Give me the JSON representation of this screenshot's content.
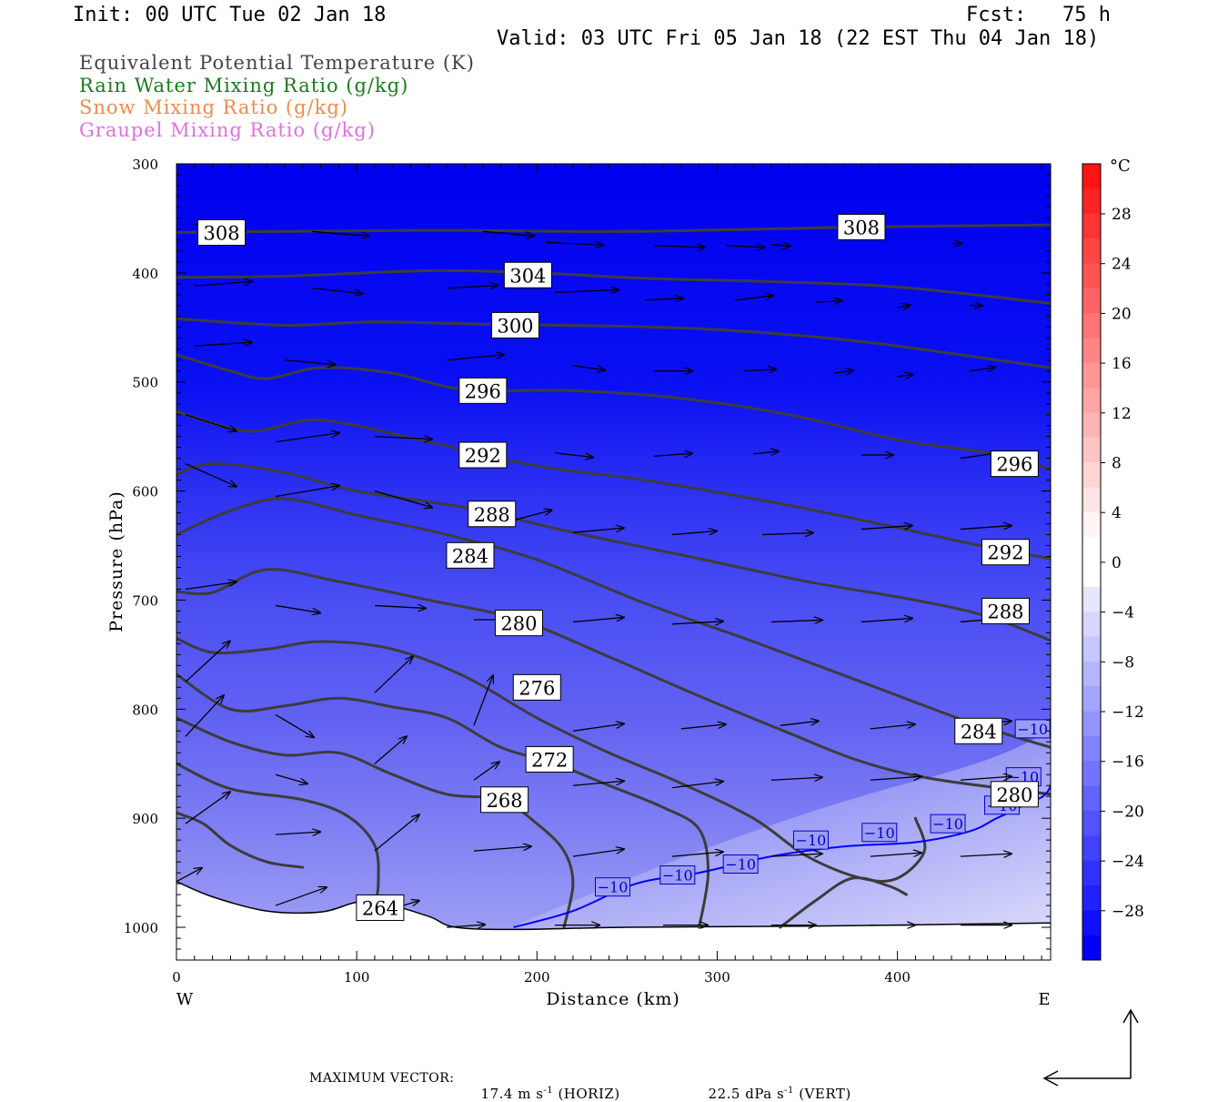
{
  "header": {
    "init": "Init: 00 UTC Tue 02 Jan 18",
    "fcst": "Fcst:   75 h",
    "valid": "Valid: 03 UTC Fri 05 Jan 18 (22 EST Thu 04 Jan 18)"
  },
  "fields": [
    {
      "label": "Equivalent Potential Temperature (K)",
      "color": "#444444"
    },
    {
      "label": "Rain Water Mixing Ratio (g/kg)",
      "color": "#1a7a1a"
    },
    {
      "label": "Snow Mixing Ratio (g/kg)",
      "color": "#f08a4b"
    },
    {
      "label": "Graupel Mixing Ratio (g/kg)",
      "color": "#e070e0"
    }
  ],
  "chart_data": {
    "type": "cross-section",
    "xlabel": "Distance (km)",
    "ylabel": "Pressure (hPa)",
    "xlim": [
      0,
      485
    ],
    "ylim": [
      1030,
      300
    ],
    "x_ticks": [
      0,
      100,
      200,
      300,
      400
    ],
    "y_ticks": [
      300,
      400,
      500,
      600,
      700,
      800,
      900,
      1000
    ],
    "x_end_labels": {
      "left": "W",
      "right": "E"
    },
    "theta_e_isolines": [
      {
        "label": "308",
        "points": [
          [
            0,
            363
          ],
          [
            60,
            362
          ],
          [
            150,
            361
          ],
          [
            250,
            362
          ],
          [
            380,
            358
          ],
          [
            485,
            356
          ]
        ]
      },
      {
        "label": "304",
        "points": [
          [
            0,
            404
          ],
          [
            60,
            403
          ],
          [
            140,
            398
          ],
          [
            200,
            400
          ],
          [
            260,
            405
          ],
          [
            330,
            408
          ],
          [
            400,
            413
          ],
          [
            485,
            428
          ]
        ]
      },
      {
        "label": "300",
        "points": [
          [
            0,
            442
          ],
          [
            60,
            448
          ],
          [
            110,
            445
          ],
          [
            170,
            447
          ],
          [
            250,
            449
          ],
          [
            300,
            452
          ],
          [
            350,
            458
          ],
          [
            400,
            467
          ],
          [
            485,
            487
          ]
        ]
      },
      {
        "label": "296",
        "points": [
          [
            0,
            475
          ],
          [
            30,
            490
          ],
          [
            50,
            497
          ],
          [
            80,
            487
          ],
          [
            120,
            492
          ],
          [
            160,
            507
          ],
          [
            220,
            508
          ],
          [
            280,
            515
          ],
          [
            340,
            530
          ],
          [
            400,
            553
          ],
          [
            450,
            565
          ],
          [
            485,
            580
          ]
        ]
      },
      {
        "label": "292",
        "points": [
          [
            0,
            527
          ],
          [
            40,
            545
          ],
          [
            80,
            535
          ],
          [
            140,
            555
          ],
          [
            200,
            577
          ],
          [
            260,
            590
          ],
          [
            330,
            610
          ],
          [
            390,
            630
          ],
          [
            440,
            648
          ],
          [
            485,
            662
          ]
        ]
      },
      {
        "label": "288",
        "points": [
          [
            0,
            585
          ],
          [
            20,
            575
          ],
          [
            60,
            583
          ],
          [
            100,
            600
          ],
          [
            160,
            615
          ],
          [
            220,
            638
          ],
          [
            290,
            662
          ],
          [
            350,
            683
          ],
          [
            410,
            700
          ],
          [
            450,
            715
          ],
          [
            485,
            737
          ]
        ]
      },
      {
        "label": "284",
        "points": [
          [
            0,
            640
          ],
          [
            30,
            618
          ],
          [
            60,
            607
          ],
          [
            100,
            622
          ],
          [
            150,
            640
          ],
          [
            200,
            663
          ],
          [
            260,
            703
          ],
          [
            320,
            738
          ],
          [
            380,
            775
          ],
          [
            440,
            812
          ],
          [
            485,
            835
          ]
        ]
      },
      {
        "label": "280",
        "points": [
          [
            0,
            692
          ],
          [
            20,
            693
          ],
          [
            50,
            672
          ],
          [
            90,
            683
          ],
          [
            140,
            700
          ],
          [
            190,
            718
          ],
          [
            240,
            752
          ],
          [
            290,
            788
          ],
          [
            340,
            822
          ],
          [
            380,
            848
          ],
          [
            420,
            864
          ],
          [
            485,
            878
          ]
        ]
      },
      {
        "label": "276",
        "points": [
          [
            0,
            735
          ],
          [
            20,
            748
          ],
          [
            50,
            745
          ],
          [
            80,
            738
          ],
          [
            120,
            745
          ],
          [
            160,
            770
          ],
          [
            200,
            808
          ],
          [
            240,
            840
          ],
          [
            280,
            868
          ],
          [
            320,
            900
          ],
          [
            350,
            935
          ],
          [
            380,
            955
          ],
          [
            400,
            955
          ],
          [
            415,
            930
          ],
          [
            410,
            900
          ]
        ]
      },
      {
        "label": "272",
        "points": [
          [
            0,
            768
          ],
          [
            30,
            800
          ],
          [
            60,
            797
          ],
          [
            90,
            790
          ],
          [
            120,
            798
          ],
          [
            150,
            808
          ],
          [
            180,
            835
          ],
          [
            210,
            850
          ],
          [
            240,
            870
          ],
          [
            270,
            890
          ],
          [
            290,
            910
          ],
          [
            295,
            950
          ],
          [
            290,
            1000
          ]
        ]
      },
      {
        "label": "268",
        "points": [
          [
            0,
            808
          ],
          [
            30,
            830
          ],
          [
            60,
            842
          ],
          [
            90,
            840
          ],
          [
            120,
            860
          ],
          [
            150,
            878
          ],
          [
            180,
            883
          ],
          [
            200,
            905
          ],
          [
            215,
            930
          ],
          [
            220,
            960
          ],
          [
            215,
            1000
          ]
        ]
      },
      {
        "label": "264",
        "points": [
          [
            0,
            850
          ],
          [
            30,
            873
          ],
          [
            70,
            883
          ],
          [
            95,
            898
          ],
          [
            110,
            925
          ],
          [
            112,
            960
          ],
          [
            110,
            980
          ]
        ]
      },
      {
        "label": "",
        "points": [
          [
            0,
            895
          ],
          [
            15,
            905
          ],
          [
            30,
            925
          ],
          [
            50,
            940
          ],
          [
            70,
            945
          ]
        ]
      },
      {
        "label": "",
        "points": [
          [
            335,
            1000
          ],
          [
            355,
            975
          ],
          [
            375,
            955
          ],
          [
            395,
            962
          ],
          [
            405,
            970
          ]
        ]
      }
    ],
    "isotherm_minus10": {
      "label": "−10",
      "color": "#0000ff",
      "points": [
        [
          187,
          1000
        ],
        [
          220,
          985
        ],
        [
          255,
          960
        ],
        [
          290,
          950
        ],
        [
          330,
          935
        ],
        [
          370,
          926
        ],
        [
          410,
          922
        ],
        [
          440,
          912
        ],
        [
          455,
          900
        ],
        [
          470,
          888
        ],
        [
          485,
          870
        ],
        [
          485,
          808
        ]
      ],
      "label_positions": [
        [
          242,
          963
        ],
        [
          278,
          952
        ],
        [
          313,
          942
        ],
        [
          352,
          920
        ],
        [
          390,
          913
        ],
        [
          428,
          905
        ],
        [
          458,
          888
        ],
        [
          470,
          862
        ],
        [
          475,
          818
        ]
      ]
    },
    "theta_e_label_positions": {
      "308": [
        [
          25,
          363
        ],
        [
          380,
          358
        ]
      ],
      "304": [
        [
          195,
          402
        ]
      ],
      "300": [
        [
          188,
          448
        ]
      ],
      "296": [
        [
          170,
          508
        ],
        [
          465,
          575
        ]
      ],
      "292": [
        [
          170,
          567
        ],
        [
          460,
          656
        ]
      ],
      "288": [
        [
          175,
          621
        ],
        [
          460,
          710
        ]
      ],
      "284": [
        [
          163,
          659
        ],
        [
          445,
          820
        ]
      ],
      "280": [
        [
          190,
          721
        ],
        [
          465,
          878
        ]
      ],
      "276": [
        [
          200,
          780
        ]
      ],
      "272": [
        [
          207,
          846
        ]
      ],
      "268": [
        [
          182,
          883
        ]
      ],
      "264": [
        [
          113,
          982
        ]
      ]
    },
    "temperature_shading": {
      "unit": "°C",
      "levels": [
        -28,
        -24,
        -20,
        -16,
        -12,
        -8,
        -4,
        0,
        4,
        8,
        12,
        16,
        20,
        24,
        28
      ],
      "colorbar_labels": [
        "28",
        "24",
        "20",
        "16",
        "12",
        "8",
        "4",
        "0",
        "−4",
        "−8",
        "−12",
        "−16",
        "−20",
        "−24",
        "−28"
      ]
    },
    "wind_vectors_note": "circulation vectors (horizontal + vertical), predominantly west-to-east",
    "vectors": [
      [
        10,
        355,
        40,
        8
      ],
      [
        75,
        362,
        45,
        5
      ],
      [
        170,
        362,
        40,
        5
      ],
      [
        205,
        372,
        45,
        3
      ],
      [
        265,
        375,
        40,
        2
      ],
      [
        305,
        375,
        30,
        2
      ],
      [
        330,
        374,
        15,
        2
      ],
      [
        430,
        373,
        8,
        0
      ],
      [
        10,
        412,
        45,
        -5
      ],
      [
        75,
        414,
        40,
        6
      ],
      [
        150,
        414,
        40,
        -3
      ],
      [
        210,
        418,
        50,
        -3
      ],
      [
        260,
        425,
        30,
        -2
      ],
      [
        310,
        425,
        30,
        -5
      ],
      [
        355,
        427,
        20,
        -2
      ],
      [
        400,
        432,
        10,
        -3
      ],
      [
        440,
        430,
        10,
        0
      ],
      [
        10,
        467,
        45,
        -4
      ],
      [
        60,
        480,
        40,
        5
      ],
      [
        150,
        480,
        45,
        -6
      ],
      [
        220,
        485,
        25,
        5
      ],
      [
        265,
        490,
        30,
        0
      ],
      [
        315,
        490,
        25,
        -2
      ],
      [
        365,
        492,
        15,
        -3
      ],
      [
        400,
        495,
        12,
        -2
      ],
      [
        440,
        490,
        20,
        -4
      ],
      [
        5,
        530,
        40,
        18
      ],
      [
        55,
        555,
        50,
        -10
      ],
      [
        110,
        550,
        45,
        3
      ],
      [
        210,
        565,
        30,
        5
      ],
      [
        265,
        568,
        30,
        -3
      ],
      [
        320,
        566,
        20,
        -3
      ],
      [
        380,
        567,
        25,
        0
      ],
      [
        435,
        570,
        30,
        -6
      ],
      [
        5,
        575,
        40,
        25
      ],
      [
        55,
        605,
        50,
        -12
      ],
      [
        110,
        600,
        45,
        18
      ],
      [
        180,
        630,
        40,
        -15
      ],
      [
        220,
        638,
        40,
        -5
      ],
      [
        275,
        640,
        35,
        -4
      ],
      [
        325,
        640,
        40,
        -2
      ],
      [
        380,
        635,
        40,
        -4
      ],
      [
        435,
        635,
        40,
        -4
      ],
      [
        5,
        690,
        40,
        -8
      ],
      [
        55,
        705,
        35,
        8
      ],
      [
        110,
        705,
        40,
        3
      ],
      [
        165,
        718,
        40,
        0
      ],
      [
        220,
        720,
        40,
        -5
      ],
      [
        275,
        722,
        40,
        -3
      ],
      [
        330,
        720,
        40,
        -2
      ],
      [
        380,
        720,
        40,
        -4
      ],
      [
        435,
        720,
        40,
        -5
      ],
      [
        5,
        775,
        35,
        -45
      ],
      [
        55,
        805,
        30,
        25
      ],
      [
        110,
        785,
        30,
        -40
      ],
      [
        165,
        815,
        15,
        -55
      ],
      [
        220,
        820,
        40,
        -8
      ],
      [
        280,
        818,
        35,
        -5
      ],
      [
        335,
        815,
        30,
        -5
      ],
      [
        385,
        818,
        35,
        -5
      ],
      [
        435,
        815,
        40,
        -5
      ],
      [
        5,
        825,
        30,
        -45
      ],
      [
        55,
        860,
        25,
        10
      ],
      [
        110,
        850,
        25,
        -30
      ],
      [
        165,
        865,
        20,
        -20
      ],
      [
        220,
        870,
        40,
        -5
      ],
      [
        275,
        872,
        40,
        -7
      ],
      [
        330,
        865,
        40,
        -3
      ],
      [
        385,
        865,
        40,
        -4
      ],
      [
        435,
        865,
        40,
        -4
      ],
      [
        5,
        905,
        35,
        -35
      ],
      [
        55,
        915,
        35,
        -3
      ],
      [
        110,
        930,
        35,
        -40
      ],
      [
        165,
        930,
        45,
        -5
      ],
      [
        220,
        935,
        40,
        -8
      ],
      [
        275,
        935,
        40,
        -5
      ],
      [
        330,
        935,
        40,
        -3
      ],
      [
        385,
        935,
        40,
        -4
      ],
      [
        435,
        935,
        40,
        -3
      ],
      [
        0,
        958,
        20,
        -15
      ],
      [
        55,
        980,
        40,
        -20
      ],
      [
        110,
        988,
        35,
        -15
      ],
      [
        150,
        1000,
        30,
        -3
      ],
      [
        210,
        998,
        35,
        0
      ],
      [
        270,
        998,
        35,
        0
      ],
      [
        330,
        998,
        35,
        0
      ],
      [
        385,
        998,
        35,
        0
      ],
      [
        435,
        998,
        40,
        0
      ]
    ]
  },
  "footer": {
    "max_vector_label": "MAXIMUM VECTOR:",
    "horiz_value": "17.4 m s",
    "horiz_exp": "-1",
    "horiz_tag": "(HORIZ)",
    "vert_value": "22.5 dPa s",
    "vert_exp": "-1",
    "vert_tag": "(VERT)"
  }
}
